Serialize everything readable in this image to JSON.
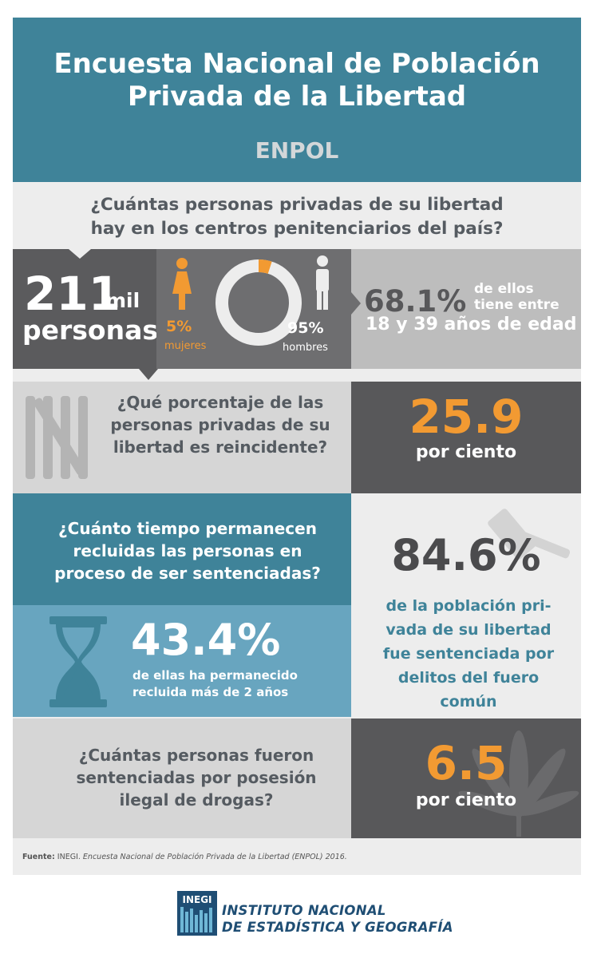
{
  "header": {
    "title_line1": "Encuesta Nacional de Población",
    "title_line2": "Privada de la Libertad",
    "subtitle": "ENPOL"
  },
  "q1": {
    "line1": "¿Cuántas personas privadas de su libertad",
    "line2": "hay en los centros penitenciarios del país?",
    "total_number": "211",
    "total_unit": "mil",
    "total_label": "personas",
    "women_pct": "5%",
    "women_label": "mujeres",
    "men_pct": "95%",
    "men_label": "hombres",
    "women_share": 0.05,
    "age_pct": "68.1%",
    "age_text1": "de ellos",
    "age_text2": "tiene entre",
    "age_text3": "18 y 39 años de edad"
  },
  "q2": {
    "line1": "¿Qué porcentaje de las",
    "line2": "personas privadas de su",
    "line3": "libertad es reincidente?",
    "value": "25.9",
    "unit": "por ciento"
  },
  "q3": {
    "line1": "¿Cuánto tiempo permanecen",
    "line2": "recluidas las personas en",
    "line3": "proceso de ser sentenciadas?",
    "value": "43.4%",
    "desc1": "de ellas ha permanecido",
    "desc2": "recluida más de 2 años",
    "sentenced_value": "84.6%",
    "sentenced_1": "de la población pri-",
    "sentenced_2": "vada de su libertad",
    "sentenced_3": "fue sentenciada por",
    "sentenced_4": "delitos del fuero",
    "sentenced_5": "común"
  },
  "q4": {
    "line1": "¿Cuántas personas fueron",
    "line2": "sentenciadas por posesión",
    "line3": "ilegal de drogas?",
    "value": "6.5",
    "unit": "por ciento"
  },
  "source": {
    "label": "Fuente:",
    "org": " INEGI. ",
    "title": "Encuesta Nacional de Población Privada de la Libertad (ENPOL) 2016."
  },
  "footer": {
    "logo_text": "INEGI",
    "line1": "INSTITUTO NACIONAL",
    "line2": "DE ESTADÍSTICA Y GEOGRAFÍA"
  },
  "colors": {
    "teal": "#3f8399",
    "light_teal": "#68a5bf",
    "orange": "#f29a32",
    "dark_gray": "#58585a"
  }
}
